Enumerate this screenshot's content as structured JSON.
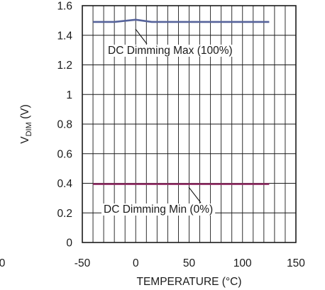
{
  "chart_data": {
    "type": "line",
    "title": "",
    "xlabel": "TEMPERATURE (°C)",
    "ylabel_main": "V",
    "ylabel_sub": "DIM",
    "ylabel_unit": " (V)",
    "xlim": [
      -50,
      150
    ],
    "ylim": [
      0,
      1.6
    ],
    "x_ticks": [
      -50,
      0,
      50,
      100,
      150
    ],
    "x_tick_labels": [
      "-50",
      "0",
      "50",
      "100",
      "150"
    ],
    "y_ticks": [
      0,
      0.2,
      0.4,
      0.6,
      0.8,
      1.0,
      1.2,
      1.4,
      1.6
    ],
    "y_tick_labels": [
      "0",
      "0.2",
      "0.4",
      "0.6",
      "0.8",
      "1",
      "1.2",
      "1.4",
      "1.6"
    ],
    "partial_left_label": "0",
    "grid": true,
    "series": [
      {
        "name": "DC Dimming Max (100%)",
        "color": "#56639b",
        "x": [
          -40,
          -20,
          0,
          15,
          25,
          50,
          75,
          100,
          125
        ],
        "y": [
          1.49,
          1.49,
          1.505,
          1.49,
          1.49,
          1.49,
          1.49,
          1.49,
          1.49
        ]
      },
      {
        "name": "DC Dimming Min (0%)",
        "color": "#8e2c62",
        "x": [
          -40,
          0,
          25,
          50,
          75,
          100,
          125
        ],
        "y": [
          0.395,
          0.395,
          0.395,
          0.395,
          0.395,
          0.395,
          0.395
        ]
      }
    ],
    "annotations": [
      {
        "text": "DC Dimming Max (100%)",
        "series": 0,
        "point_x": 12,
        "point_y": 1.49
      },
      {
        "text": "DC Dimming Min (0%)",
        "series": 1,
        "point_x": 30,
        "point_y": 0.395
      }
    ]
  }
}
